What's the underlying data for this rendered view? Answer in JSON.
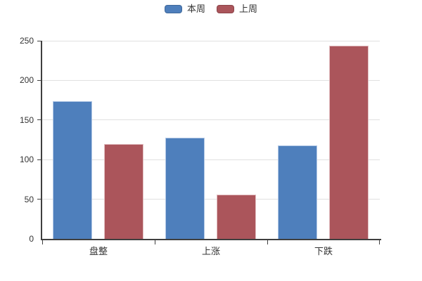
{
  "chart_data": {
    "type": "bar",
    "title": "",
    "xlabel": "",
    "ylabel": "",
    "categories": [
      "盘整",
      "上涨",
      "下跌"
    ],
    "series": [
      {
        "name": "本周",
        "color": "#4e7fbc",
        "border_color": "#b3c9e6",
        "values": [
          174,
          128,
          118
        ]
      },
      {
        "name": "上周",
        "color": "#ab555b",
        "border_color": "#e2bec1",
        "values": [
          120,
          56,
          244
        ]
      }
    ],
    "ylim": [
      0,
      250
    ],
    "yticks": [
      0,
      50,
      100,
      150,
      200,
      250
    ],
    "grid": true,
    "legend_position": "top-center"
  },
  "colors": {
    "axis": "#3f3f3f",
    "gridline": "#e0e0e0",
    "text": "#333333",
    "background": "#ffffff"
  }
}
